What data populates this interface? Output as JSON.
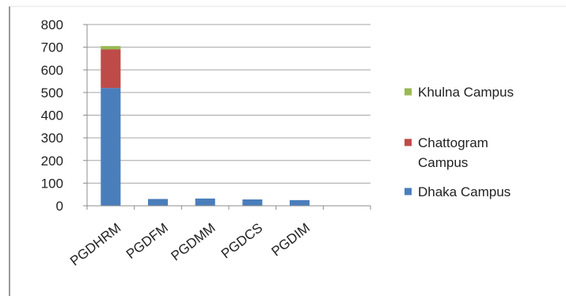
{
  "chart_data": {
    "type": "bar",
    "stacked": true,
    "categories": [
      "PGDHRM",
      "PGDFM",
      "PGDMM",
      "PGDCS",
      "PGDIM",
      ""
    ],
    "series": [
      {
        "name": "Dhaka Campus",
        "color": "#4a7ebb",
        "values": [
          520,
          30,
          32,
          28,
          25,
          0
        ]
      },
      {
        "name": "Chattogram Campus",
        "color": "#be4b48",
        "values": [
          170,
          0,
          0,
          0,
          0,
          0
        ]
      },
      {
        "name": "Khulna Campus",
        "color": "#98b954",
        "values": [
          15,
          0,
          0,
          0,
          0,
          0
        ]
      }
    ],
    "ylim": [
      0,
      800
    ],
    "yticks": [
      "0",
      "100",
      "200",
      "300",
      "400",
      "500",
      "600",
      "700",
      "800"
    ],
    "grid": true,
    "legend_position": "right",
    "legend_order": [
      "Khulna Campus",
      "Chattogram Campus",
      "Dhaka Campus"
    ],
    "legend_lines": {
      "Khulna Campus": [
        "Khulna Campus"
      ],
      "Chattogram Campus": [
        "Chattogram",
        "Campus"
      ],
      "Dhaka Campus": [
        "Dhaka Campus"
      ]
    }
  }
}
